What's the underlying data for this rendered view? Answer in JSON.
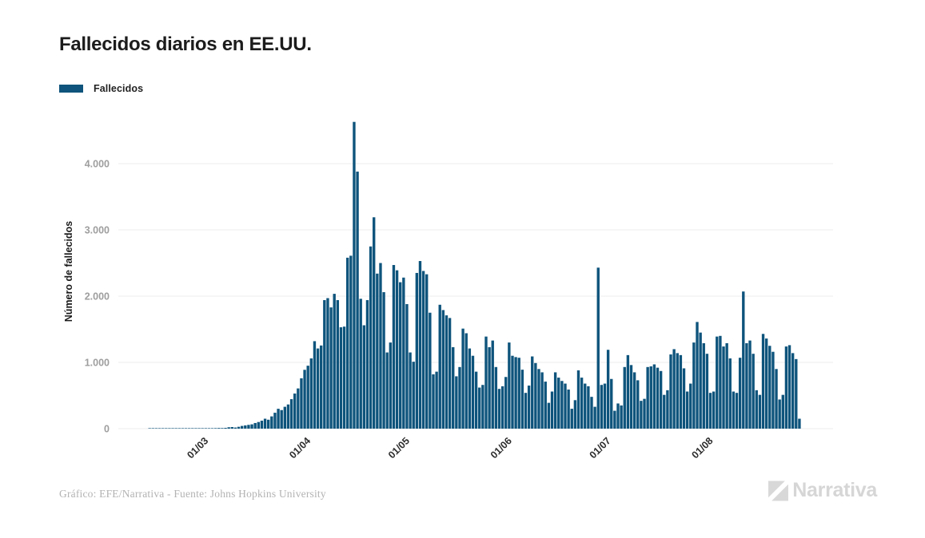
{
  "title": "Fallecidos diarios en EE.UU.",
  "legend": {
    "label": "Fallecidos"
  },
  "footer": {
    "credit": "Gráfico: EFE/Narrativa - Fuente: Johns Hopkins University",
    "logo_text": "Narrativa"
  },
  "colors": {
    "bar": "#0E547C",
    "grid": "#ececec",
    "y_tick_label": "#9e9e9e",
    "x_tick_label": "#2d2d2d",
    "title": "#1c1c1c",
    "footer_text": "#b3b3b3",
    "logo": "#d8d8d8"
  },
  "chart_data": {
    "type": "bar",
    "title": "Fallecidos diarios en EE.UU.",
    "xlabel": "",
    "ylabel": "Número de fallecidos",
    "ylim": [
      0,
      4800
    ],
    "grid": true,
    "legend_position": "top-left",
    "y_ticks": [
      {
        "value": 0,
        "label": "0"
      },
      {
        "value": 1000,
        "label": "1.000"
      },
      {
        "value": 2000,
        "label": "2.000"
      },
      {
        "value": 3000,
        "label": "3.000"
      },
      {
        "value": 4000,
        "label": "4.000"
      }
    ],
    "x_ticks": [
      {
        "index": 25,
        "label": "01/03"
      },
      {
        "index": 56,
        "label": "01/04"
      },
      {
        "index": 86,
        "label": "01/05"
      },
      {
        "index": 117,
        "label": "01/06"
      },
      {
        "index": 147,
        "label": "01/07"
      },
      {
        "index": 178,
        "label": "01/08"
      }
    ],
    "series": [
      {
        "name": "Fallecidos",
        "values": [
          0,
          0,
          0,
          0,
          0,
          0,
          0,
          0,
          0,
          2,
          1,
          2,
          1,
          2,
          3,
          2,
          2,
          3,
          2,
          3,
          4,
          3,
          4,
          5,
          6,
          5,
          6,
          4,
          6,
          8,
          10,
          9,
          12,
          21,
          24,
          17,
          28,
          41,
          49,
          57,
          65,
          85,
          100,
          120,
          150,
          135,
          185,
          240,
          300,
          280,
          330,
          365,
          445,
          530,
          607,
          760,
          888,
          950,
          1060,
          1320,
          1210,
          1255,
          1940,
          1970,
          1830,
          2035,
          1940,
          1530,
          1540,
          2580,
          2610,
          4630,
          3880,
          1960,
          1560,
          1940,
          2750,
          3190,
          2340,
          2500,
          2060,
          1150,
          1300,
          2470,
          2390,
          2210,
          2280,
          1880,
          1150,
          1010,
          2350,
          2530,
          2380,
          2330,
          1750,
          820,
          860,
          1870,
          1790,
          1710,
          1670,
          1230,
          790,
          930,
          1510,
          1440,
          1210,
          1100,
          860,
          620,
          660,
          1390,
          1230,
          1330,
          930,
          600,
          640,
          780,
          1300,
          1100,
          1080,
          1070,
          890,
          540,
          650,
          1090,
          990,
          900,
          850,
          710,
          390,
          560,
          850,
          770,
          720,
          680,
          590,
          300,
          430,
          880,
          770,
          680,
          640,
          480,
          330,
          2430,
          660,
          680,
          1190,
          750,
          270,
          380,
          350,
          930,
          1110,
          960,
          850,
          730,
          420,
          450,
          930,
          940,
          970,
          920,
          870,
          510,
          580,
          1120,
          1200,
          1140,
          1110,
          910,
          560,
          680,
          1300,
          1610,
          1450,
          1290,
          1130,
          540,
          560,
          1390,
          1400,
          1240,
          1290,
          1060,
          560,
          540,
          1070,
          2070,
          1290,
          1330,
          1130,
          580,
          510,
          1430,
          1360,
          1250,
          1160,
          900,
          440,
          510,
          1240,
          1260,
          1140,
          1050,
          150
        ]
      }
    ]
  }
}
